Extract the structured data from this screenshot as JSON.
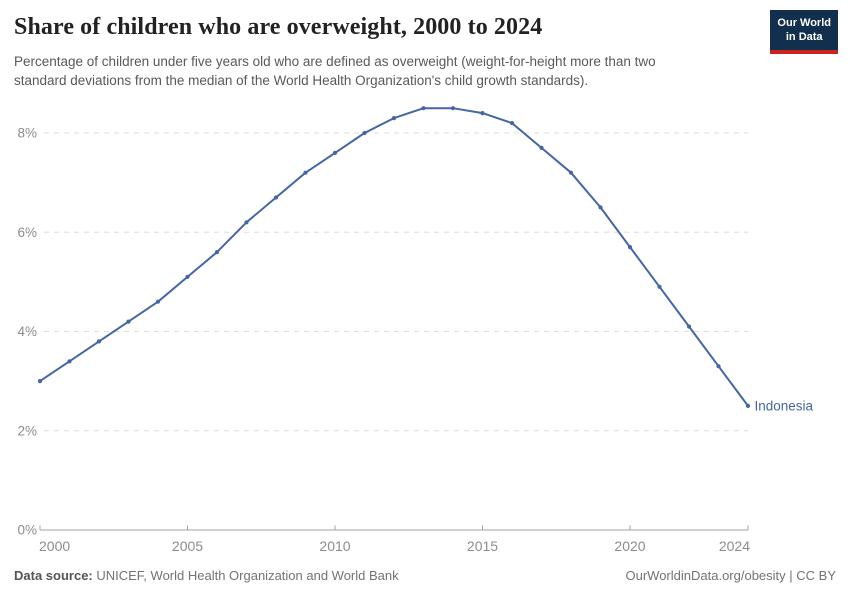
{
  "header": {
    "title": "Share of children who are overweight, 2000 to 2024",
    "subtitle": "Percentage of children under five years old who are defined as overweight (weight-for-height more than two standard deviations from the median of the World Health Organization's child growth standards).",
    "logo": {
      "line1": "Our World",
      "line2": "in Data",
      "bg_color": "#12304E",
      "bar_color": "#C9251C"
    }
  },
  "chart_data": {
    "type": "line",
    "title": "Share of children who are overweight, 2000 to 2024",
    "x": [
      2000,
      2001,
      2002,
      2003,
      2004,
      2005,
      2006,
      2007,
      2008,
      2009,
      2010,
      2011,
      2012,
      2013,
      2014,
      2015,
      2016,
      2017,
      2018,
      2019,
      2020,
      2021,
      2022,
      2023,
      2024
    ],
    "series": [
      {
        "name": "Indonesia",
        "color": "#4566A4",
        "values": [
          3.0,
          3.4,
          3.8,
          4.2,
          4.6,
          5.1,
          5.6,
          6.2,
          6.7,
          7.2,
          7.6,
          8.0,
          8.3,
          8.5,
          8.5,
          8.4,
          8.2,
          7.7,
          7.2,
          6.5,
          5.7,
          4.9,
          4.1,
          3.3,
          2.5
        ]
      }
    ],
    "xlabel": "",
    "ylabel": "",
    "xlim": [
      2000,
      2024
    ],
    "ylim": [
      0,
      8.7
    ],
    "x_ticks": [
      2000,
      2005,
      2010,
      2015,
      2020,
      2024
    ],
    "y_ticks": [
      0,
      2,
      4,
      6,
      8
    ],
    "y_tick_suffix": "%",
    "grid": "horizontal-dashed",
    "legend_position": "end-of-line-label",
    "end_label": "Indonesia",
    "markers": true
  },
  "footer": {
    "source_label": "Data source:",
    "source_text": " UNICEF, World Health Organization and World Bank",
    "right_text": "OurWorldinData.org/obesity | CC BY"
  },
  "colors": {
    "accent_line": "#4566A4",
    "gridline": "#DEDEDE",
    "axis": "#A3A3A3",
    "tick_label": "#8C8C8C",
    "title_text": "#222222",
    "subtitle_text": "#595959"
  }
}
